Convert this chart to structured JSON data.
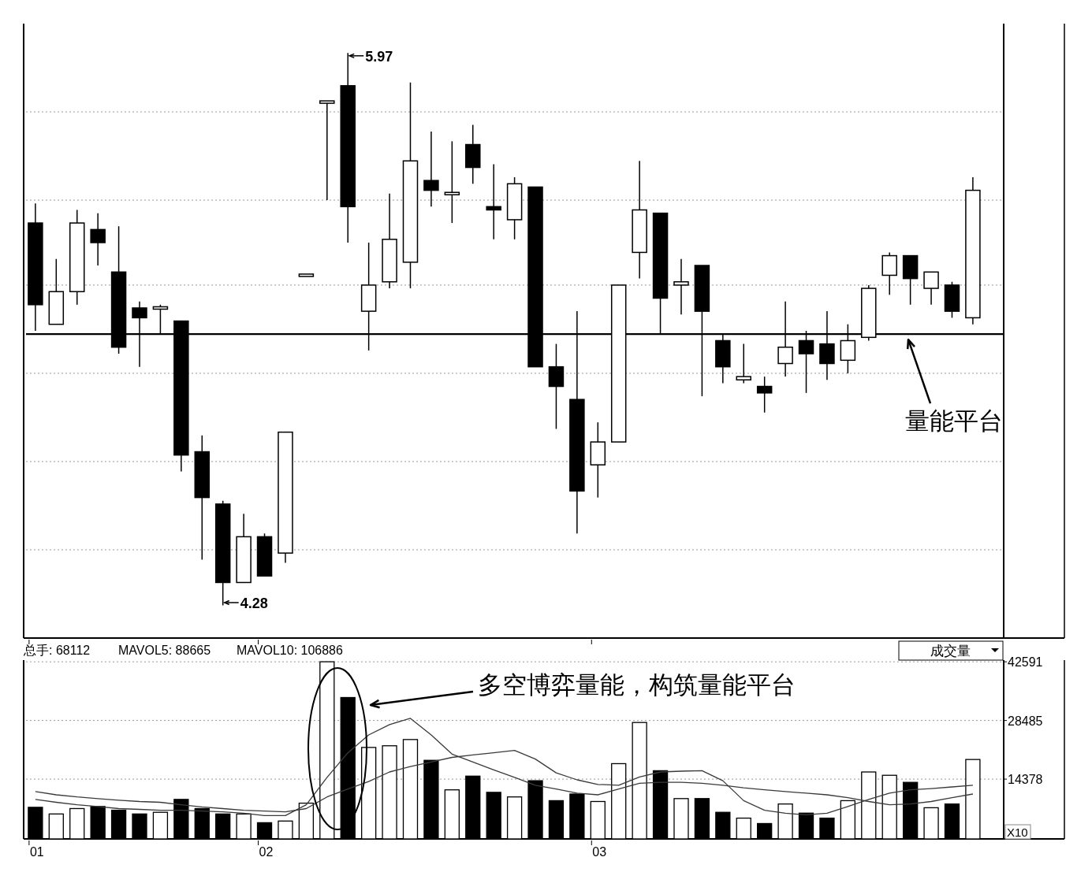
{
  "chart_data": [
    {
      "type": "candlestick",
      "categories": [
        "01",
        null,
        null,
        null,
        null,
        null,
        null,
        null,
        null,
        null,
        null,
        "02",
        null,
        null,
        null,
        null,
        null,
        null,
        null,
        null,
        null,
        null,
        null,
        null,
        null,
        null,
        null,
        "03",
        null,
        null,
        null,
        null,
        null,
        null,
        null,
        null,
        null,
        null,
        null,
        null,
        null,
        null,
        null,
        null,
        null,
        null
      ],
      "ohlc": [
        [
          5.45,
          5.51,
          5.12,
          5.2
        ],
        [
          5.14,
          5.34,
          5.14,
          5.24
        ],
        [
          5.24,
          5.49,
          5.2,
          5.45
        ],
        [
          5.43,
          5.48,
          5.32,
          5.39
        ],
        [
          5.3,
          5.44,
          5.05,
          5.07
        ],
        [
          5.19,
          5.21,
          5.01,
          5.16
        ],
        [
          5.19,
          5.2,
          5.11,
          5.19
        ],
        [
          5.15,
          5.15,
          4.69,
          4.74
        ],
        [
          4.75,
          4.8,
          4.42,
          4.61
        ],
        [
          4.59,
          4.6,
          4.28,
          4.35
        ],
        [
          4.35,
          4.56,
          4.35,
          4.49
        ],
        [
          4.49,
          4.5,
          4.37,
          4.37
        ],
        [
          4.44,
          4.81,
          4.41,
          4.81
        ],
        [
          5.29,
          5.29,
          5.29,
          5.29
        ],
        [
          5.82,
          5.82,
          5.52,
          5.82
        ],
        [
          5.87,
          5.97,
          5.39,
          5.5
        ],
        [
          5.18,
          5.39,
          5.06,
          5.26
        ],
        [
          5.27,
          5.54,
          5.25,
          5.4
        ],
        [
          5.33,
          5.88,
          5.25,
          5.64
        ],
        [
          5.58,
          5.73,
          5.5,
          5.55
        ],
        [
          5.54,
          5.7,
          5.45,
          5.54
        ],
        [
          5.69,
          5.75,
          5.57,
          5.62
        ],
        [
          5.5,
          5.63,
          5.4,
          5.49
        ],
        [
          5.46,
          5.59,
          5.4,
          5.57
        ],
        [
          5.56,
          5.56,
          5.01,
          5.01
        ],
        [
          5.01,
          5.08,
          4.82,
          4.95
        ],
        [
          4.91,
          5.18,
          4.5,
          4.63
        ],
        [
          4.71,
          4.84,
          4.61,
          4.78
        ],
        [
          4.78,
          5.26,
          4.78,
          5.26
        ],
        [
          5.36,
          5.64,
          5.28,
          5.49
        ],
        [
          5.48,
          5.48,
          5.11,
          5.22
        ],
        [
          5.26,
          5.34,
          5.17,
          5.27
        ],
        [
          5.32,
          5.32,
          4.92,
          5.18
        ],
        [
          5.09,
          5.11,
          4.96,
          5.01
        ],
        [
          4.97,
          5.08,
          4.96,
          4.98
        ],
        [
          4.95,
          4.98,
          4.87,
          4.93
        ],
        [
          5.02,
          5.21,
          4.98,
          5.07
        ],
        [
          5.09,
          5.12,
          4.93,
          5.05
        ],
        [
          5.08,
          5.18,
          4.97,
          5.02
        ],
        [
          5.03,
          5.14,
          4.99,
          5.09
        ],
        [
          5.1,
          5.26,
          5.09,
          5.25
        ],
        [
          5.29,
          5.36,
          5.23,
          5.35
        ],
        [
          5.35,
          5.35,
          5.2,
          5.28
        ],
        [
          5.25,
          5.3,
          5.2,
          5.3
        ],
        [
          5.26,
          5.27,
          5.16,
          5.18
        ],
        [
          5.16,
          5.59,
          5.14,
          5.55
        ]
      ],
      "ylim": [
        4.18,
        6.06
      ],
      "yticks": [
        {
          "value": 4.45,
          "label": null
        },
        {
          "value": 4.72,
          "label": null
        },
        {
          "value": 4.99,
          "label": null
        },
        {
          "value": 5.26,
          "label": null
        },
        {
          "value": 5.52,
          "label": null
        },
        {
          "value": 5.79,
          "label": null
        }
      ],
      "grid": "y",
      "tick_labels": false,
      "ref_lines": [
        {
          "axis": "y",
          "value": 5.11,
          "color": "#000000"
        }
      ],
      "annotations": [
        "5.97",
        "4.28",
        "量能平台"
      ]
    },
    {
      "type": "bar",
      "categories": [
        "01",
        null,
        null,
        null,
        null,
        null,
        null,
        null,
        null,
        null,
        null,
        "02",
        null,
        null,
        null,
        null,
        null,
        null,
        null,
        null,
        null,
        null,
        null,
        null,
        null,
        null,
        null,
        "03",
        null,
        null,
        null,
        null,
        null,
        null,
        null,
        null,
        null,
        null,
        null,
        null,
        null,
        null,
        null,
        null,
        null,
        null
      ],
      "series": [
        {
          "type": "bar",
          "values": [
            7600,
            6000,
            7300,
            7800,
            6900,
            6000,
            6400,
            9500,
            7300,
            6000,
            6000,
            3900,
            4300,
            8600,
            42600,
            34000,
            22000,
            22400,
            23900,
            18900,
            11800,
            15100,
            11200,
            10100,
            14000,
            9200,
            10800,
            9000,
            18100,
            28000,
            16400,
            9700,
            9700,
            6400,
            5000,
            3700,
            8400,
            6200,
            5000,
            9200,
            16100,
            15300,
            13600,
            7500,
            8400,
            19100
          ],
          "colors": [
            "#000000",
            "#ffffff",
            "#ffffff",
            "#000000",
            "#000000",
            "#000000",
            "#ffffff",
            "#000000",
            "#000000",
            "#000000",
            "#ffffff",
            "#000000",
            "#ffffff",
            "#ffffff",
            "#ffffff",
            "#000000",
            "#ffffff",
            "#ffffff",
            "#ffffff",
            "#000000",
            "#ffffff",
            "#000000",
            "#000000",
            "#ffffff",
            "#000000",
            "#000000",
            "#000000",
            "#ffffff",
            "#ffffff",
            "#ffffff",
            "#000000",
            "#ffffff",
            "#000000",
            "#000000",
            "#ffffff",
            "#000000",
            "#ffffff",
            "#000000",
            "#000000",
            "#ffffff",
            "#ffffff",
            "#ffffff",
            "#000000",
            "#ffffff",
            "#000000",
            "#ffffff"
          ]
        },
        {
          "type": "line",
          "color": "#3a3a3a",
          "values": [
            9500,
            8800,
            8200,
            7800,
            7300,
            7100,
            6900,
            6900,
            6700,
            6500,
            6200,
            5600,
            5600,
            8200,
            14800,
            20700,
            25000,
            27500,
            29000,
            25000,
            20400,
            18500,
            16600,
            14800,
            12900,
            12000,
            11000,
            10600,
            12000,
            13400,
            13600,
            13600,
            13400,
            12900,
            12300,
            11800,
            11400,
            11000,
            10600,
            9900,
            9000,
            8200,
            8400,
            9000,
            9900,
            10800
          ]
        },
        {
          "type": "line",
          "color": "#3a3a3a",
          "values": [
            11400,
            10600,
            10100,
            9700,
            9300,
            9000,
            8800,
            8200,
            7700,
            7300,
            6900,
            6700,
            6500,
            7300,
            10100,
            12000,
            13800,
            16100,
            17400,
            18500,
            19600,
            20200,
            20700,
            21300,
            19200,
            15900,
            14200,
            13100,
            12900,
            14900,
            16100,
            16300,
            16400,
            14000,
            9200,
            6900,
            6200,
            5800,
            6200,
            7800,
            9500,
            11000,
            11800,
            12100,
            12500,
            12900
          ]
        }
      ],
      "ylim": [
        0,
        43000
      ],
      "yticks": [
        14378,
        28485,
        42591
      ],
      "grid": "y",
      "ylabel": "X10",
      "annotations": [
        "总手: 68112",
        "MAVOL5: 88665",
        "MAVOL10: 106886",
        "成交量",
        "多空博弈量能，构筑量能平台"
      ]
    }
  ]
}
